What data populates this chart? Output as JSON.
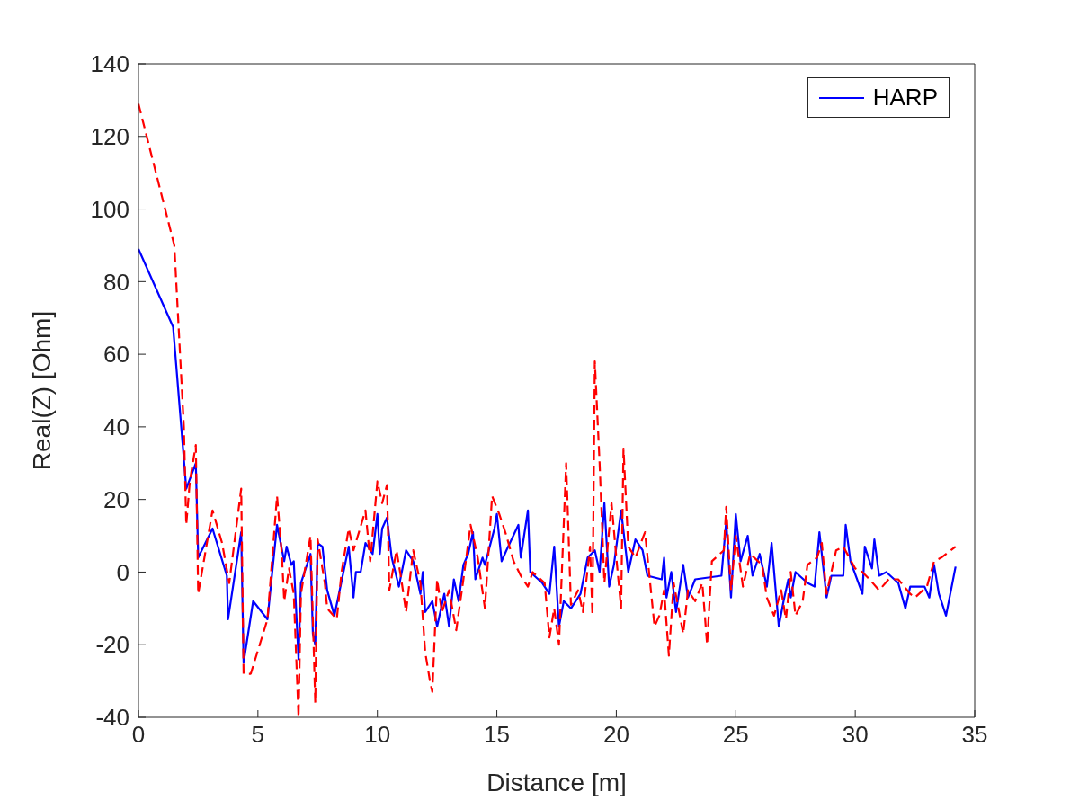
{
  "chart_data": {
    "type": "line",
    "xlabel": "Distance [m]",
    "ylabel": "Real(Z) [Ohm]",
    "xlim": [
      0,
      35
    ],
    "xticks": [
      0,
      5,
      10,
      15,
      20,
      25,
      30,
      35
    ],
    "ylim": [
      -40,
      140
    ],
    "yticks": [
      -40,
      -20,
      0,
      20,
      40,
      60,
      80,
      100,
      120,
      140
    ],
    "grid": false,
    "legend": "top right",
    "marker": "none",
    "series": [
      {
        "name": "HARP",
        "color": "#0000ff",
        "line_style": "solid",
        "x": [
          0,
          1.45,
          2.0,
          2.4,
          2.5,
          3.1,
          3.7,
          3.75,
          4.3,
          4.4,
          4.8,
          5.4,
          5.8,
          6.1,
          6.2,
          6.4,
          6.5,
          6.7,
          6.8,
          7.2,
          7.3,
          7.4,
          7.5,
          7.7,
          7.9,
          8.2,
          8.8,
          9.0,
          9.1,
          9.3,
          9.5,
          9.8,
          10.0,
          10.1,
          10.2,
          10.4,
          10.6,
          10.9,
          11.2,
          11.5,
          11.8,
          11.9,
          12.0,
          12.3,
          12.5,
          12.8,
          13.0,
          13.2,
          13.4,
          13.6,
          13.8,
          14.0,
          14.1,
          14.4,
          14.5,
          14.9,
          15.0,
          15.2,
          15.4,
          15.9,
          16.0,
          16.3,
          16.4,
          16.9,
          17.2,
          17.4,
          17.6,
          17.8,
          18.1,
          18.5,
          18.8,
          19.1,
          19.3,
          19.5,
          19.7,
          19.9,
          20.2,
          20.5,
          20.8,
          21.1,
          21.3,
          21.9,
          22.0,
          22.1,
          22.3,
          22.5,
          22.8,
          23.0,
          23.3,
          24.4,
          24.6,
          24.8,
          25.0,
          25.2,
          25.5,
          25.7,
          26.0,
          26.3,
          26.5,
          26.8,
          27.0,
          27.2,
          27.3,
          27.5,
          28.0,
          28.3,
          28.5,
          28.8,
          29.0,
          29.5,
          29.6,
          29.8,
          30.3,
          30.4,
          30.7,
          30.8,
          31.0,
          31.3,
          31.8,
          32.1,
          32.3,
          32.9,
          33.1,
          33.3,
          33.5,
          33.8,
          34.2
        ],
        "values": [
          89,
          67.5,
          23,
          30,
          4,
          12,
          -1,
          -13,
          11,
          -25,
          -8,
          -13,
          13,
          3,
          7,
          2,
          3,
          -24,
          -3,
          5,
          -17,
          -20,
          8,
          7,
          -5,
          -12,
          7,
          -7,
          0,
          0,
          8,
          5,
          16,
          5,
          12,
          15,
          4,
          -4,
          6,
          3,
          -6,
          0,
          -11,
          -8,
          -15,
          -6,
          -15,
          -2,
          -8,
          2,
          5,
          11,
          -2,
          4,
          2,
          12,
          16,
          3,
          6,
          13,
          4,
          17,
          0,
          -3,
          -6,
          7,
          -15,
          -8,
          -10,
          -6,
          4,
          6,
          0,
          19,
          -4,
          2,
          17,
          0,
          9,
          6,
          -1,
          -2,
          4,
          -7,
          0,
          -11,
          2,
          -7,
          -2,
          -1,
          14,
          -7,
          16,
          3,
          10,
          -1,
          5,
          -4,
          8,
          -15,
          -8,
          -2,
          -7,
          0,
          -3,
          -4,
          11,
          -7,
          -1,
          -1,
          13,
          3,
          -6,
          7,
          1,
          9,
          -1,
          0,
          -3,
          -10,
          -4,
          -4,
          -7,
          2,
          -6,
          -12,
          1.5
        ]
      },
      {
        "color": "#ff0000",
        "line_style": "dashed",
        "x": [
          0,
          1.5,
          1.9,
          2.0,
          2.15,
          2.4,
          2.5,
          3.1,
          3.5,
          3.8,
          4.3,
          4.4,
          4.7,
          5.4,
          5.8,
          6.0,
          6.1,
          6.3,
          6.5,
          6.7,
          6.8,
          7.2,
          7.4,
          7.5,
          7.8,
          7.9,
          8.3,
          8.5,
          8.8,
          9.0,
          9.5,
          9.7,
          10.0,
          10.2,
          10.4,
          10.5,
          10.8,
          11.0,
          11.2,
          11.5,
          11.8,
          12.0,
          12.2,
          12.3,
          12.5,
          12.7,
          13.0,
          13.3,
          13.6,
          13.9,
          14.2,
          14.5,
          14.8,
          15.1,
          15.4,
          15.7,
          16.0,
          16.3,
          16.5,
          17.0,
          17.2,
          17.4,
          17.6,
          17.9,
          18.1,
          18.4,
          18.6,
          18.9,
          19.0,
          19.1,
          19.3,
          19.5,
          19.8,
          20.0,
          20.2,
          20.3,
          20.5,
          20.8,
          21.2,
          21.6,
          21.8,
          22.0,
          22.2,
          22.4,
          22.8,
          23.0,
          23.3,
          23.6,
          23.8,
          24.0,
          24.5,
          24.6,
          24.8,
          25.0,
          25.3,
          25.6,
          26.1,
          26.3,
          26.6,
          26.9,
          27.1,
          27.3,
          27.5,
          27.8,
          28.0,
          28.4,
          28.6,
          28.8,
          29.2,
          29.5,
          30.0,
          30.3,
          30.6,
          31.0,
          31.4,
          31.8,
          32.3,
          32.5,
          33.0,
          33.3,
          33.6,
          34.2
        ],
        "values": [
          129,
          90,
          40,
          13,
          25,
          35,
          -6,
          17,
          8,
          -3,
          23,
          -28,
          -28,
          -13,
          21,
          5,
          -8,
          1,
          -6,
          -40,
          -6,
          10,
          -36,
          9,
          -3,
          -10,
          -13,
          0,
          12,
          6,
          17,
          3,
          25,
          19,
          24,
          -5,
          6,
          -2,
          -11,
          6,
          -3,
          -22,
          -30,
          -33,
          -2,
          -11,
          -5,
          -16,
          -2,
          13,
          4,
          -10,
          21,
          16,
          10,
          3,
          -1,
          -4,
          0,
          -3,
          -18,
          -10,
          -20,
          30,
          -9,
          -5,
          -11,
          7,
          -12,
          58,
          30,
          -3,
          19,
          4,
          -10,
          34,
          7,
          4,
          11,
          -15,
          -12,
          -5,
          -23,
          -3,
          -17,
          -5,
          -8,
          -3,
          -20,
          3,
          6,
          18,
          -5,
          10,
          -4,
          5,
          2,
          -7,
          -12,
          -5,
          -13,
          0,
          -12,
          -8,
          2,
          4,
          8,
          -6,
          6,
          7,
          1,
          0,
          -2,
          -5,
          -2,
          -2,
          -6,
          -7,
          -4,
          3,
          4,
          7
        ]
      }
    ]
  }
}
